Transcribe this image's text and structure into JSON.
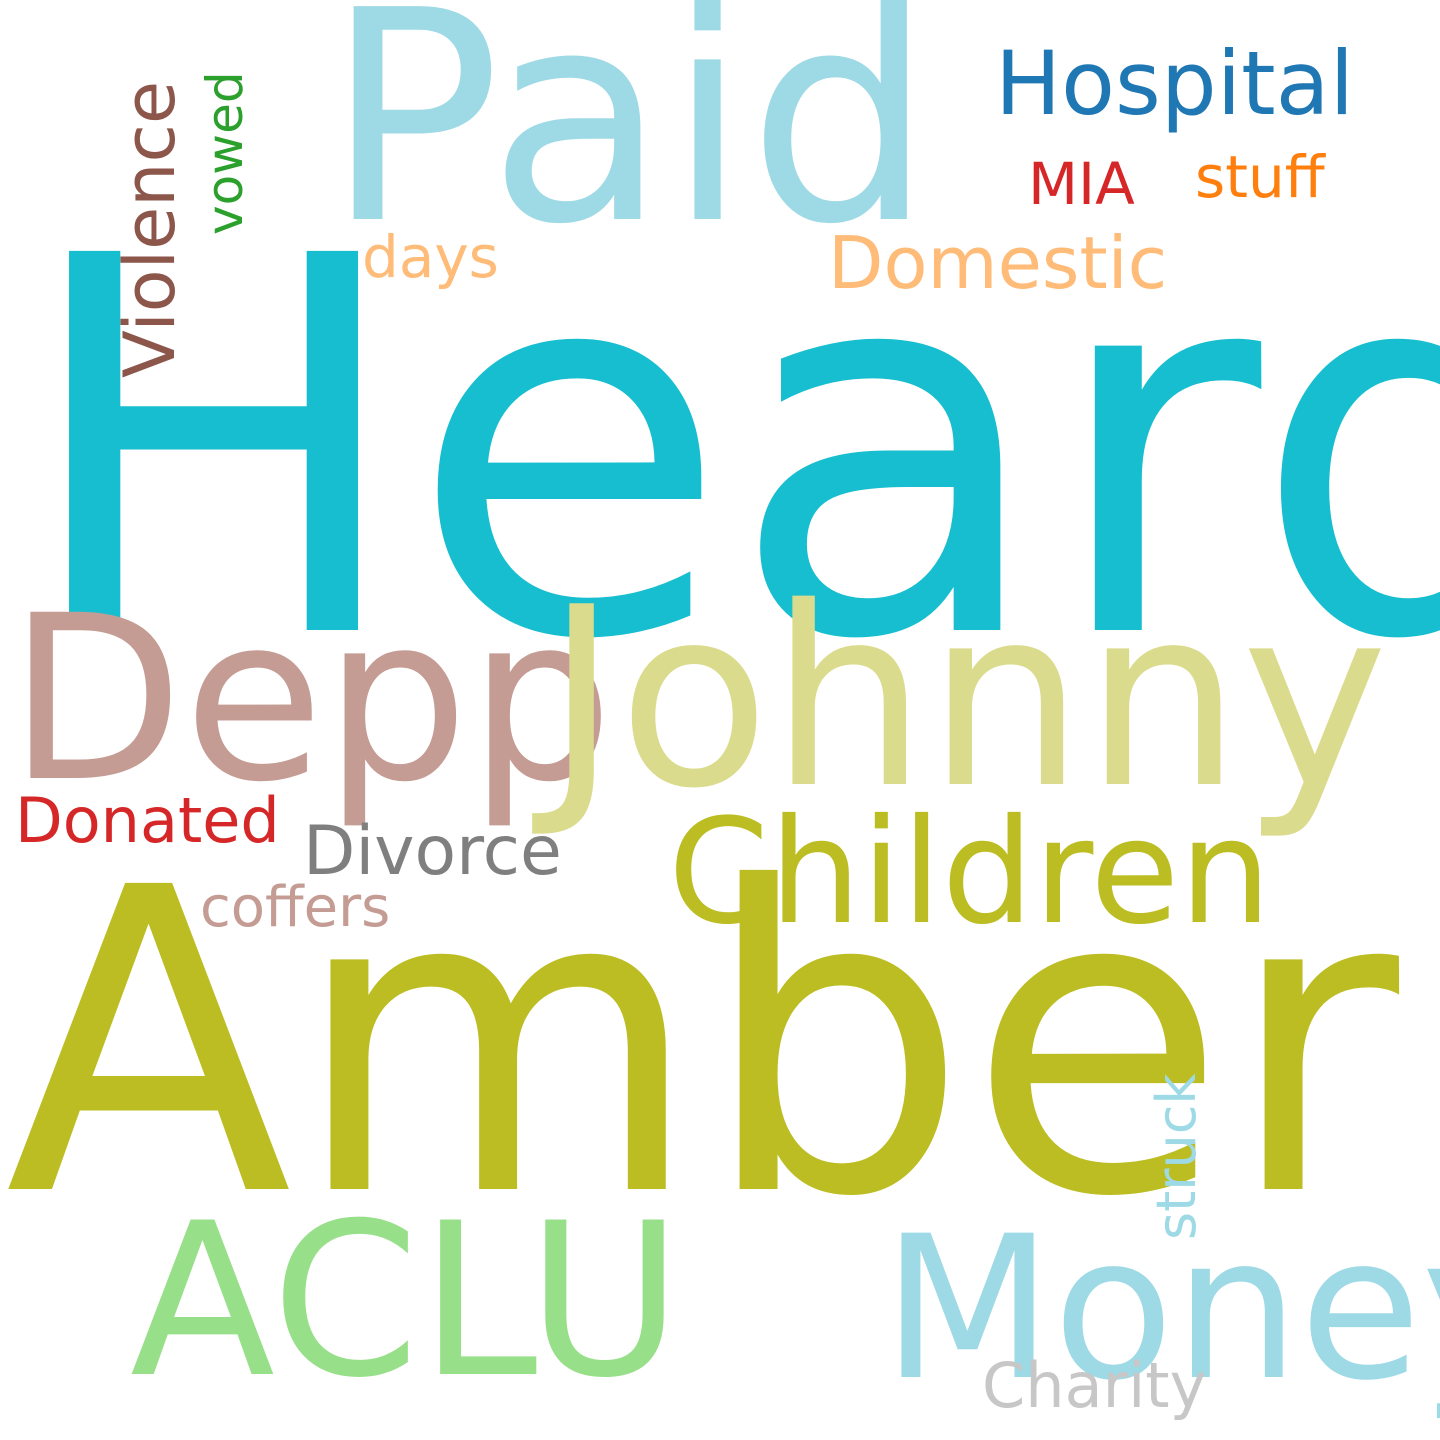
{
  "words": {
    "heard": {
      "text": "Heard",
      "color": "#17becf"
    },
    "amber": {
      "text": "Amber",
      "color": "#bcbd22"
    },
    "paid": {
      "text": "Paid",
      "color": "#9edae5"
    },
    "johnny": {
      "text": "Johnny",
      "color": "#dbdb8d"
    },
    "depp": {
      "text": "Depp",
      "color": "#c49c94"
    },
    "aclu": {
      "text": "ACLU",
      "color": "#98df8a"
    },
    "money": {
      "text": "Money",
      "color": "#9edae5"
    },
    "children": {
      "text": "Children",
      "color": "#bcbd22"
    },
    "hospital": {
      "text": "Hospital",
      "color": "#1f77b4"
    },
    "domestic": {
      "text": "Domestic",
      "color": "#ffbb78"
    },
    "violence": {
      "text": "Violence",
      "color": "#8c564b"
    },
    "divorce": {
      "text": "Divorce",
      "color": "#7f7f7f"
    },
    "donated": {
      "text": "Donated",
      "color": "#d62728"
    },
    "charity": {
      "text": "Charity",
      "color": "#c7c7c7"
    },
    "coffers": {
      "text": "coffers",
      "color": "#c49c94"
    },
    "days": {
      "text": "days",
      "color": "#ffbb78"
    },
    "mia": {
      "text": "MIA",
      "color": "#d62728"
    },
    "stuff": {
      "text": "stuff",
      "color": "#ff7f0e"
    },
    "vowed": {
      "text": "vowed",
      "color": "#2ca02c"
    },
    "struck": {
      "text": "struck",
      "color": "#9edae5"
    }
  }
}
